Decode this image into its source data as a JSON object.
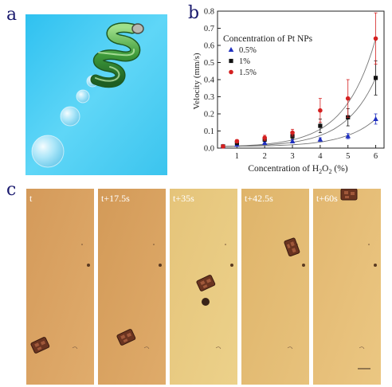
{
  "panels": {
    "a": {
      "label": "a"
    },
    "b": {
      "label": "b"
    },
    "c": {
      "label": "c"
    }
  },
  "chart_data": {
    "type": "scatter",
    "xlabel": "Concentration of H2O2 (%)",
    "ylabel": "Velocity (mm/s)",
    "legend_title": "Concentration of Pt NPs",
    "legend_position": "top-left",
    "xlim": [
      0.3,
      6.3
    ],
    "ylim": [
      0,
      0.8
    ],
    "x_ticks": [
      1,
      2,
      3,
      4,
      5,
      6
    ],
    "y_ticks": [
      0.0,
      0.1,
      0.2,
      0.3,
      0.4,
      0.5,
      0.6,
      0.7,
      0.8
    ],
    "fit_curves": true,
    "series": [
      {
        "name": "0.5%",
        "marker": "triangle",
        "color": "#1f2fbf",
        "x": [
          0.5,
          1,
          2,
          3,
          4,
          5,
          6
        ],
        "y": [
          0.01,
          0.02,
          0.03,
          0.04,
          0.05,
          0.07,
          0.17
        ],
        "err": [
          0.005,
          0.005,
          0.008,
          0.01,
          0.01,
          0.015,
          0.03
        ]
      },
      {
        "name": "1%",
        "marker": "square",
        "color": "#111111",
        "x": [
          0.5,
          1,
          2,
          3,
          4,
          5,
          6
        ],
        "y": [
          0.01,
          0.03,
          0.05,
          0.07,
          0.13,
          0.18,
          0.41
        ],
        "err": [
          0.005,
          0.008,
          0.01,
          0.015,
          0.04,
          0.05,
          0.1
        ]
      },
      {
        "name": "1.5%",
        "marker": "circle",
        "color": "#d42020",
        "x": [
          0.5,
          1,
          2,
          3,
          4,
          5,
          6
        ],
        "y": [
          0.01,
          0.04,
          0.06,
          0.09,
          0.22,
          0.29,
          0.64
        ],
        "err": [
          0.005,
          0.01,
          0.015,
          0.02,
          0.07,
          0.11,
          0.15
        ]
      }
    ]
  },
  "frames": [
    {
      "label": "t"
    },
    {
      "label": "t+17.5s"
    },
    {
      "label": "t+35s"
    },
    {
      "label": "t+42.5s"
    },
    {
      "label": "t+60s"
    }
  ]
}
